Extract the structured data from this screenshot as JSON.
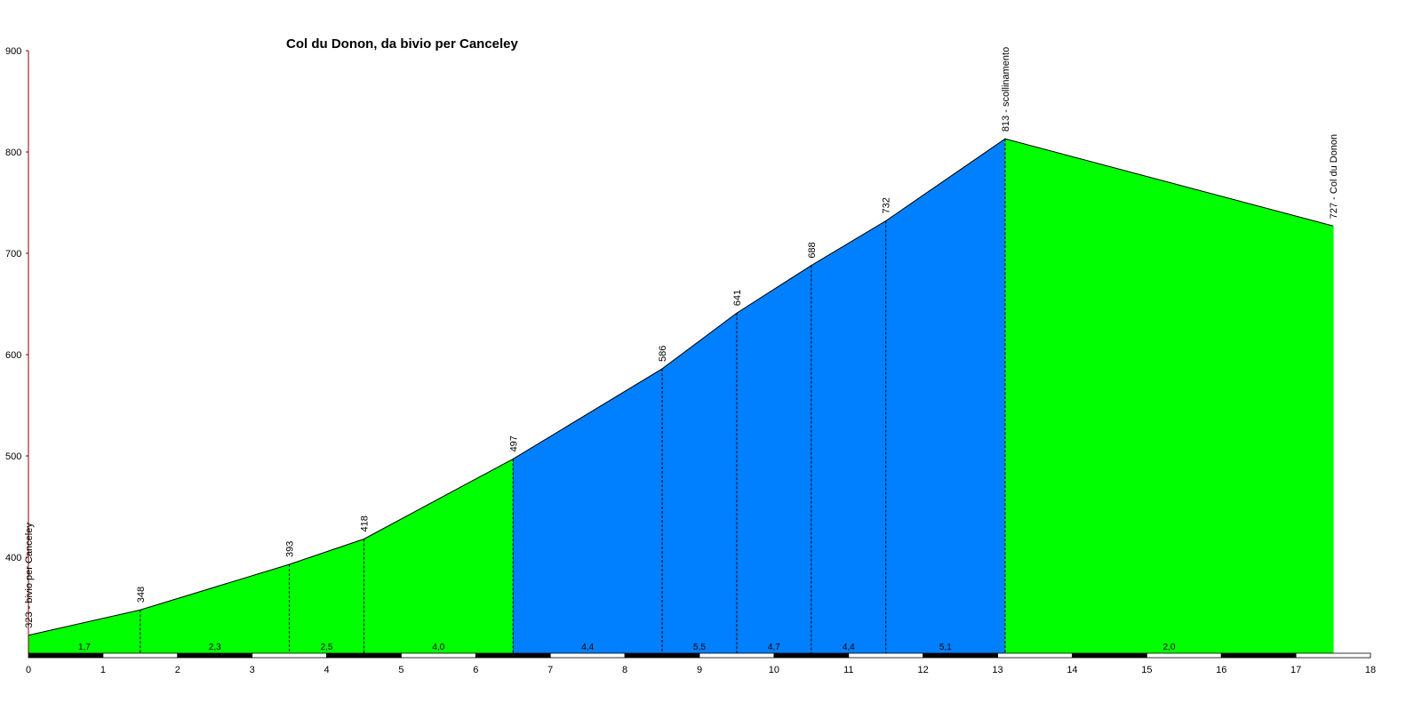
{
  "chart_data": {
    "type": "area",
    "title": "Col du Donon, da bivio per Canceley",
    "xlabel": "",
    "ylabel": "",
    "xlim": [
      0,
      18
    ],
    "ylim": [
      300,
      900
    ],
    "x_ticks": [
      "0",
      "1",
      "2",
      "3",
      "4",
      "5",
      "6",
      "7",
      "8",
      "9",
      "10",
      "11",
      "12",
      "13",
      "14",
      "15",
      "16",
      "17",
      "18"
    ],
    "y_ticks": [
      "400",
      "500",
      "600",
      "700",
      "800",
      "900"
    ],
    "colors": {
      "easy": "#00ff00",
      "hard": "#0080ff",
      "outline": "#000000",
      "axis": "#800000"
    },
    "profile": [
      {
        "x": 0,
        "y": 323,
        "label": "323 - bivio per Canceley"
      },
      {
        "x": 1.5,
        "y": 348,
        "label": "348"
      },
      {
        "x": 3.5,
        "y": 393,
        "label": "393"
      },
      {
        "x": 4.5,
        "y": 418,
        "label": "418"
      },
      {
        "x": 6.5,
        "y": 497,
        "label": "497"
      },
      {
        "x": 8.5,
        "y": 586,
        "label": "586"
      },
      {
        "x": 9.5,
        "y": 641,
        "label": "641"
      },
      {
        "x": 10.5,
        "y": 688,
        "label": "688"
      },
      {
        "x": 11.5,
        "y": 732,
        "label": "732"
      },
      {
        "x": 13.1,
        "y": 813,
        "label": "813 - scollinamento"
      },
      {
        "x": 17.5,
        "y": 727,
        "label": "727 - Col du Donon"
      }
    ],
    "segments": [
      {
        "from": 0,
        "to": 1.5,
        "grade": "1,7",
        "color": "easy"
      },
      {
        "from": 1.5,
        "to": 3.5,
        "grade": "2,3",
        "color": "easy"
      },
      {
        "from": 3.5,
        "to": 4.5,
        "grade": "2,5",
        "color": "easy"
      },
      {
        "from": 4.5,
        "to": 6.5,
        "grade": "4,0",
        "color": "easy"
      },
      {
        "from": 6.5,
        "to": 8.5,
        "grade": "4,4",
        "color": "hard"
      },
      {
        "from": 8.5,
        "to": 9.5,
        "grade": "5,5",
        "color": "hard"
      },
      {
        "from": 9.5,
        "to": 10.5,
        "grade": "4,7",
        "color": "hard"
      },
      {
        "from": 10.5,
        "to": 11.5,
        "grade": "4,4",
        "color": "hard"
      },
      {
        "from": 11.5,
        "to": 13.1,
        "grade": "5,1",
        "color": "hard"
      },
      {
        "from": 13.1,
        "to": 17.5,
        "grade": "2,0",
        "color": "easy"
      }
    ]
  }
}
